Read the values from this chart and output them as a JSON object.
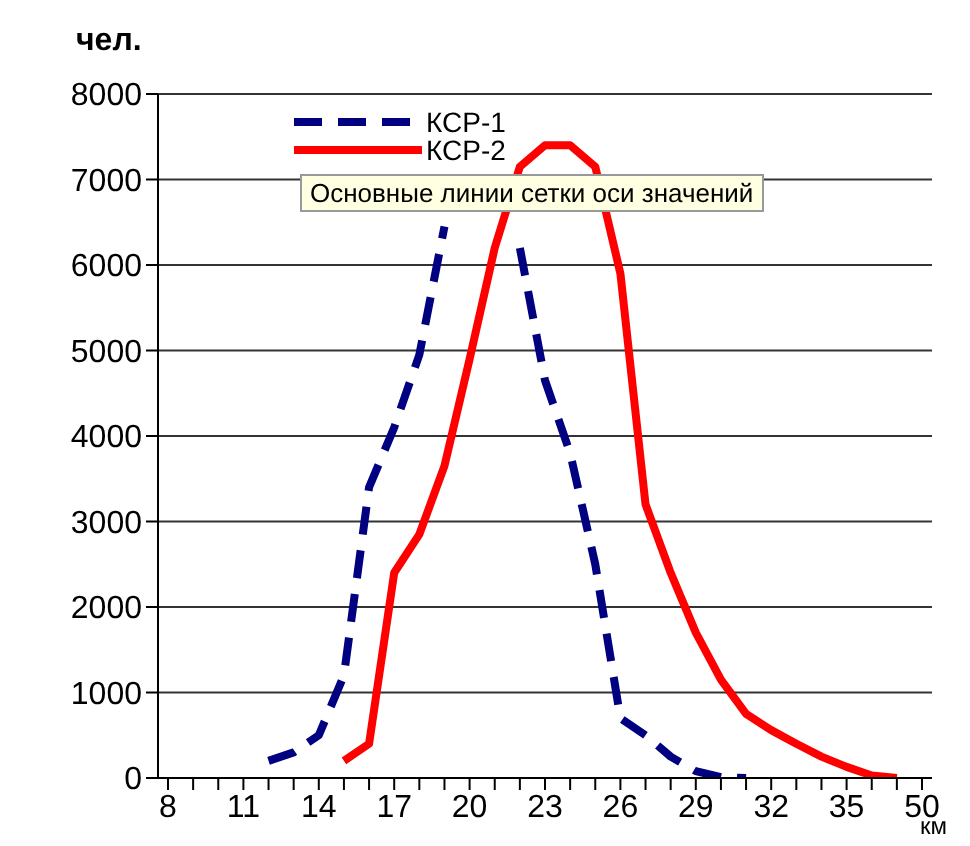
{
  "chart_data": {
    "type": "line",
    "ylabel": "чел.",
    "xlabel": "км",
    "categories": [
      "8",
      null,
      null,
      "11",
      null,
      null,
      "14",
      null,
      null,
      "17",
      null,
      null,
      "20",
      null,
      null,
      "23",
      null,
      null,
      "26",
      null,
      null,
      "29",
      null,
      null,
      "32",
      null,
      null,
      "35",
      null,
      null,
      "50"
    ],
    "series": [
      {
        "name": "КСР-1",
        "color": "#000080",
        "line_style": "dashed",
        "values": [
          null,
          null,
          null,
          null,
          200,
          300,
          500,
          1200,
          3400,
          4100,
          4950,
          6450,
          null,
          null,
          6200,
          4650,
          3800,
          2500,
          700,
          500,
          250,
          80,
          10,
          0,
          null,
          null,
          null,
          null,
          null,
          null,
          null
        ]
      },
      {
        "name": "КСР-2",
        "color": "#ff0000",
        "line_style": "solid",
        "values": [
          null,
          null,
          null,
          null,
          null,
          null,
          null,
          200,
          400,
          2400,
          2850,
          3650,
          4900,
          6200,
          7150,
          7400,
          7400,
          7150,
          5900,
          3200,
          2400,
          1700,
          1150,
          750,
          560,
          400,
          250,
          130,
          30,
          0,
          null
        ]
      }
    ],
    "ylim": [
      0,
      8000
    ],
    "yticks": [
      0,
      1000,
      2000,
      3000,
      4000,
      5000,
      6000,
      7000,
      8000
    ],
    "grid": "y",
    "legend": "top left",
    "marker": "none",
    "annotations": [
      "Основные линии сетки оси значений"
    ]
  }
}
